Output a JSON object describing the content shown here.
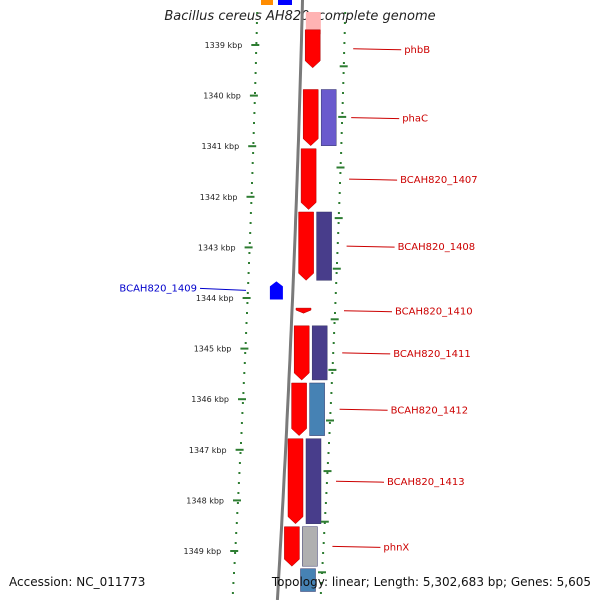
{
  "title": "Bacillus cereus AH820, complete genome",
  "accession": "Accession: NC_011773",
  "summary": "Topology: linear; Length: 5,302,683 bp; Genes: 5,605",
  "colors": {
    "forward_gene": "#ff0000",
    "reverse_gene": "#0000ff",
    "scale_ticks": "#2e7d32",
    "label_forward": "#cc0000",
    "label_reverse": "#0000cc"
  },
  "scale": {
    "unit": "kbp",
    "ticks": [
      "1339 kbp",
      "1340 kbp",
      "1341 kbp",
      "1342 kbp",
      "1343 kbp",
      "1344 kbp",
      "1345 kbp",
      "1346 kbp",
      "1347 kbp",
      "1348 kbp",
      "1349 kbp"
    ]
  },
  "genes": [
    {
      "label": "phbB",
      "strand": "forward",
      "start_kbp": 1338.7,
      "end_kbp": 1339.45
    },
    {
      "label": "phaC",
      "strand": "forward",
      "start_kbp": 1339.88,
      "end_kbp": 1340.99
    },
    {
      "label": "BCAH820_1407",
      "strand": "forward",
      "start_kbp": 1341.05,
      "end_kbp": 1342.25
    },
    {
      "label": "BCAH820_1408",
      "strand": "forward",
      "start_kbp": 1342.3,
      "end_kbp": 1343.65
    },
    {
      "label": "BCAH820_1410",
      "strand": "forward",
      "start_kbp": 1344.2,
      "end_kbp": 1344.3
    },
    {
      "label": "BCAH820_1411",
      "strand": "forward",
      "start_kbp": 1344.55,
      "end_kbp": 1345.62
    },
    {
      "label": "BCAH820_1412",
      "strand": "forward",
      "start_kbp": 1345.68,
      "end_kbp": 1346.72
    },
    {
      "label": "BCAH820_1413",
      "strand": "forward",
      "start_kbp": 1346.78,
      "end_kbp": 1348.46
    },
    {
      "label": "phnX",
      "strand": "forward",
      "start_kbp": 1348.52,
      "end_kbp": 1349.3
    },
    {
      "label": "BCAH820_1409",
      "strand": "reverse",
      "start_kbp": 1343.75,
      "end_kbp": 1343.95
    }
  ],
  "features": [
    {
      "start_kbp": 1339.88,
      "end_kbp": 1340.99,
      "color": "#6a5acd"
    },
    {
      "start_kbp": 1342.3,
      "end_kbp": 1343.65,
      "color": "#483d8b"
    },
    {
      "start_kbp": 1344.55,
      "end_kbp": 1345.62,
      "color": "#483d8b"
    },
    {
      "start_kbp": 1345.68,
      "end_kbp": 1346.72,
      "color": "#4682b4"
    },
    {
      "start_kbp": 1346.78,
      "end_kbp": 1348.46,
      "color": "#483d8b"
    },
    {
      "start_kbp": 1348.52,
      "end_kbp": 1349.3,
      "color": "#b0b0b0"
    },
    {
      "start_kbp": 1349.35,
      "end_kbp": 1349.8,
      "color": "#4682b4"
    }
  ]
}
